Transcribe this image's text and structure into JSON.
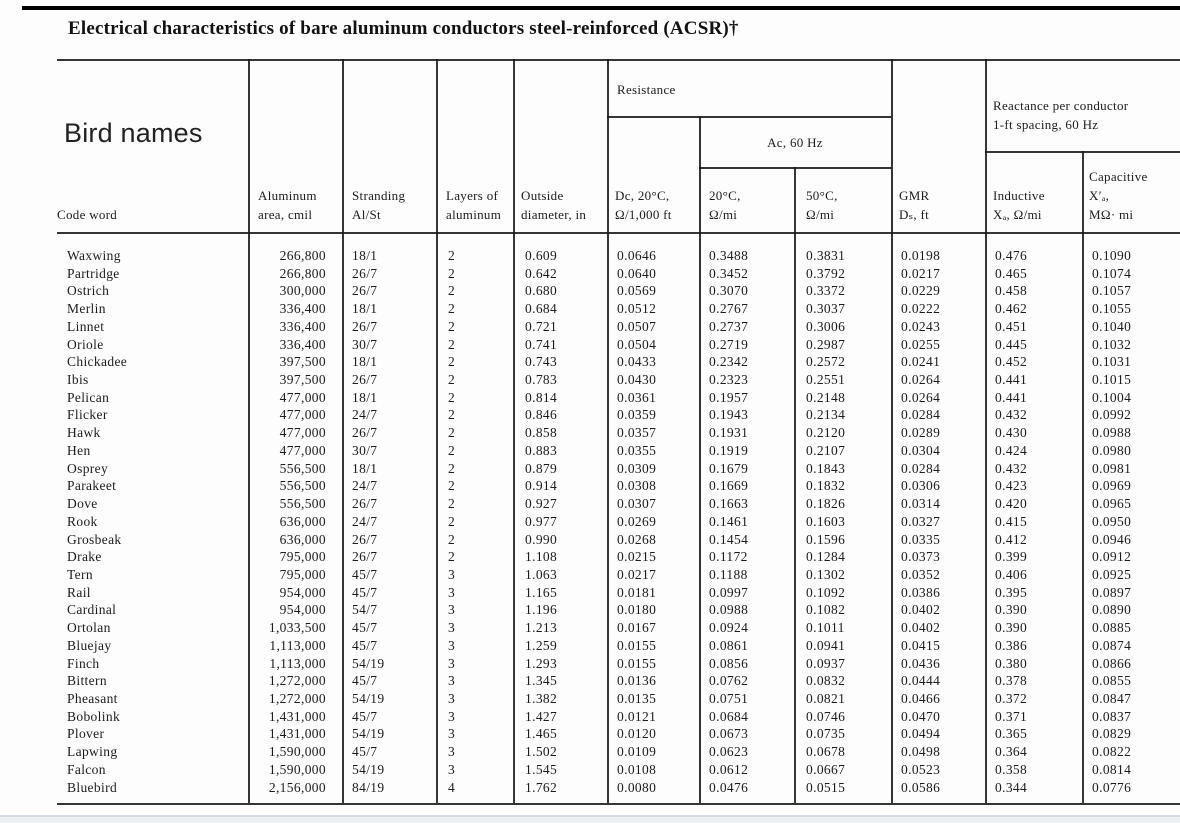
{
  "page": {
    "title": "Electrical characteristics of bare aluminum conductors steel-reinforced (ACSR)†",
    "annotation": "Bird names"
  },
  "table": {
    "groups": {
      "resistance": "Resistance",
      "ac": "Ac, 60 Hz",
      "reactance": "Reactance per conductor\n1-ft spacing, 60 Hz"
    },
    "columns": [
      {
        "id": "code_word",
        "label": "Code word"
      },
      {
        "id": "aluminum_area",
        "label": "Aluminum\narea, cmil"
      },
      {
        "id": "stranding",
        "label": "Stranding\nAl/St"
      },
      {
        "id": "layers",
        "label": "Layers of\naluminum"
      },
      {
        "id": "outside_diameter",
        "label": "Outside\ndiameter, in"
      },
      {
        "id": "dc_20c",
        "label": "Dc, 20°C,\nΩ/1,000 ft"
      },
      {
        "id": "ac_20c",
        "label": "20°C,\nΩ/mi"
      },
      {
        "id": "ac_50c",
        "label": "50°C,\nΩ/mi"
      },
      {
        "id": "gmr",
        "label": "GMR\nDₛ, ft"
      },
      {
        "id": "inductive",
        "label": "Inductive\nXₐ, Ω/mi"
      },
      {
        "id": "capacitive",
        "label": "Capacitive\nX′ₐ,\nMΩ· mi"
      }
    ],
    "rows": [
      [
        "Waxwing",
        "266,800",
        "18/1",
        "2",
        "0.609",
        "0.0646",
        "0.3488",
        "0.3831",
        "0.0198",
        "0.476",
        "0.1090"
      ],
      [
        "Partridge",
        "266,800",
        "26/7",
        "2",
        "0.642",
        "0.0640",
        "0.3452",
        "0.3792",
        "0.0217",
        "0.465",
        "0.1074"
      ],
      [
        "Ostrich",
        "300,000",
        "26/7",
        "2",
        "0.680",
        "0.0569",
        "0.3070",
        "0.3372",
        "0.0229",
        "0.458",
        "0.1057"
      ],
      [
        "Merlin",
        "336,400",
        "18/1",
        "2",
        "0.684",
        "0.0512",
        "0.2767",
        "0.3037",
        "0.0222",
        "0.462",
        "0.1055"
      ],
      [
        "Linnet",
        "336,400",
        "26/7",
        "2",
        "0.721",
        "0.0507",
        "0.2737",
        "0.3006",
        "0.0243",
        "0.451",
        "0.1040"
      ],
      [
        "Oriole",
        "336,400",
        "30/7",
        "2",
        "0.741",
        "0.0504",
        "0.2719",
        "0.2987",
        "0.0255",
        "0.445",
        "0.1032"
      ],
      [
        "Chickadee",
        "397,500",
        "18/1",
        "2",
        "0.743",
        "0.0433",
        "0.2342",
        "0.2572",
        "0.0241",
        "0.452",
        "0.1031"
      ],
      [
        "Ibis",
        "397,500",
        "26/7",
        "2",
        "0.783",
        "0.0430",
        "0.2323",
        "0.2551",
        "0.0264",
        "0.441",
        "0.1015"
      ],
      [
        "Pelican",
        "477,000",
        "18/1",
        "2",
        "0.814",
        "0.0361",
        "0.1957",
        "0.2148",
        "0.0264",
        "0.441",
        "0.1004"
      ],
      [
        "Flicker",
        "477,000",
        "24/7",
        "2",
        "0.846",
        "0.0359",
        "0.1943",
        "0.2134",
        "0.0284",
        "0.432",
        "0.0992"
      ],
      [
        "Hawk",
        "477,000",
        "26/7",
        "2",
        "0.858",
        "0.0357",
        "0.1931",
        "0.2120",
        "0.0289",
        "0.430",
        "0.0988"
      ],
      [
        "Hen",
        "477,000",
        "30/7",
        "2",
        "0.883",
        "0.0355",
        "0.1919",
        "0.2107",
        "0.0304",
        "0.424",
        "0.0980"
      ],
      [
        "Osprey",
        "556,500",
        "18/1",
        "2",
        "0.879",
        "0.0309",
        "0.1679",
        "0.1843",
        "0.0284",
        "0.432",
        "0.0981"
      ],
      [
        "Parakeet",
        "556,500",
        "24/7",
        "2",
        "0.914",
        "0.0308",
        "0.1669",
        "0.1832",
        "0.0306",
        "0.423",
        "0.0969"
      ],
      [
        "Dove",
        "556,500",
        "26/7",
        "2",
        "0.927",
        "0.0307",
        "0.1663",
        "0.1826",
        "0.0314",
        "0.420",
        "0.0965"
      ],
      [
        "Rook",
        "636,000",
        "24/7",
        "2",
        "0.977",
        "0.0269",
        "0.1461",
        "0.1603",
        "0.0327",
        "0.415",
        "0.0950"
      ],
      [
        "Grosbeak",
        "636,000",
        "26/7",
        "2",
        "0.990",
        "0.0268",
        "0.1454",
        "0.1596",
        "0.0335",
        "0.412",
        "0.0946"
      ],
      [
        "Drake",
        "795,000",
        "26/7",
        "2",
        "1.108",
        "0.0215",
        "0.1172",
        "0.1284",
        "0.0373",
        "0.399",
        "0.0912"
      ],
      [
        "Tern",
        "795,000",
        "45/7",
        "3",
        "1.063",
        "0.0217",
        "0.1188",
        "0.1302",
        "0.0352",
        "0.406",
        "0.0925"
      ],
      [
        "Rail",
        "954,000",
        "45/7",
        "3",
        "1.165",
        "0.0181",
        "0.0997",
        "0.1092",
        "0.0386",
        "0.395",
        "0.0897"
      ],
      [
        "Cardinal",
        "954,000",
        "54/7",
        "3",
        "1.196",
        "0.0180",
        "0.0988",
        "0.1082",
        "0.0402",
        "0.390",
        "0.0890"
      ],
      [
        "Ortolan",
        "1,033,500",
        "45/7",
        "3",
        "1.213",
        "0.0167",
        "0.0924",
        "0.1011",
        "0.0402",
        "0.390",
        "0.0885"
      ],
      [
        "Bluejay",
        "1,113,000",
        "45/7",
        "3",
        "1.259",
        "0.0155",
        "0.0861",
        "0.0941",
        "0.0415",
        "0.386",
        "0.0874"
      ],
      [
        "Finch",
        "1,113,000",
        "54/19",
        "3",
        "1.293",
        "0.0155",
        "0.0856",
        "0.0937",
        "0.0436",
        "0.380",
        "0.0866"
      ],
      [
        "Bittern",
        "1,272,000",
        "45/7",
        "3",
        "1.345",
        "0.0136",
        "0.0762",
        "0.0832",
        "0.0444",
        "0.378",
        "0.0855"
      ],
      [
        "Pheasant",
        "1,272,000",
        "54/19",
        "3",
        "1.382",
        "0.0135",
        "0.0751",
        "0.0821",
        "0.0466",
        "0.372",
        "0.0847"
      ],
      [
        "Bobolink",
        "1,431,000",
        "45/7",
        "3",
        "1.427",
        "0.0121",
        "0.0684",
        "0.0746",
        "0.0470",
        "0.371",
        "0.0837"
      ],
      [
        "Plover",
        "1,431,000",
        "54/19",
        "3",
        "1.465",
        "0.0120",
        "0.0673",
        "0.0735",
        "0.0494",
        "0.365",
        "0.0829"
      ],
      [
        "Lapwing",
        "1,590,000",
        "45/7",
        "3",
        "1.502",
        "0.0109",
        "0.0623",
        "0.0678",
        "0.0498",
        "0.364",
        "0.0822"
      ],
      [
        "Falcon",
        "1,590,000",
        "54/19",
        "3",
        "1.545",
        "0.0108",
        "0.0612",
        "0.0667",
        "0.0523",
        "0.358",
        "0.0814"
      ],
      [
        "Bluebird",
        "2,156,000",
        "84/19",
        "4",
        "1.762",
        "0.0080",
        "0.0476",
        "0.0515",
        "0.0586",
        "0.344",
        "0.0776"
      ]
    ]
  }
}
